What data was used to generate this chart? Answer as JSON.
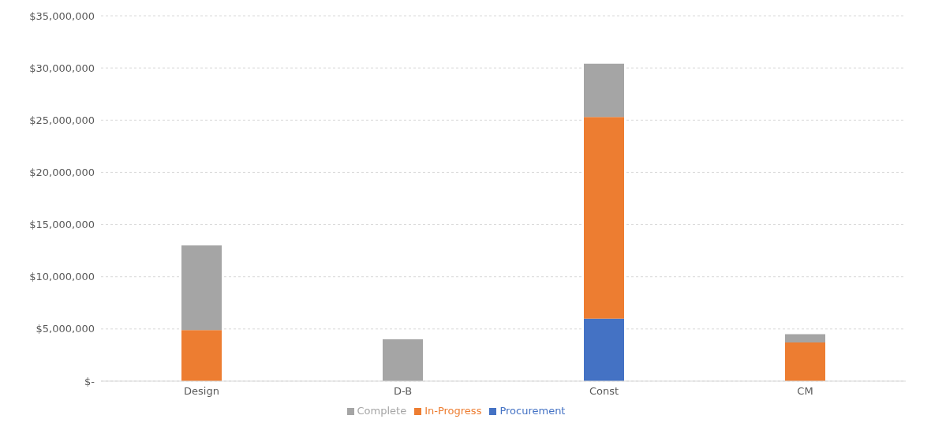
{
  "chart_data": {
    "type": "bar",
    "stacked": true,
    "categories": [
      "Design",
      "D-B",
      "Const",
      "CM"
    ],
    "series": [
      {
        "name": "Procurement",
        "color": "#4472c4",
        "values": [
          0,
          0,
          6000000,
          0
        ]
      },
      {
        "name": "In-Progress",
        "color": "#ed7d31",
        "values": [
          4900000,
          0,
          19300000,
          3700000
        ]
      },
      {
        "name": "Complete",
        "color": "#a5a5a5",
        "values": [
          8100000,
          4000000,
          5100000,
          800000
        ]
      }
    ],
    "ylim": [
      0,
      35000000
    ],
    "yticks": [
      {
        "value": 0,
        "label": "$-"
      },
      {
        "value": 5000000,
        "label": "$5,000,000"
      },
      {
        "value": 10000000,
        "label": "$10,000,000"
      },
      {
        "value": 15000000,
        "label": "$15,000,000"
      },
      {
        "value": 20000000,
        "label": "$20,000,000"
      },
      {
        "value": 25000000,
        "label": "$25,000,000"
      },
      {
        "value": 30000000,
        "label": "$30,000,000"
      },
      {
        "value": 35000000,
        "label": "$35,000,000"
      }
    ],
    "grid": "y",
    "legend": "bottom"
  }
}
